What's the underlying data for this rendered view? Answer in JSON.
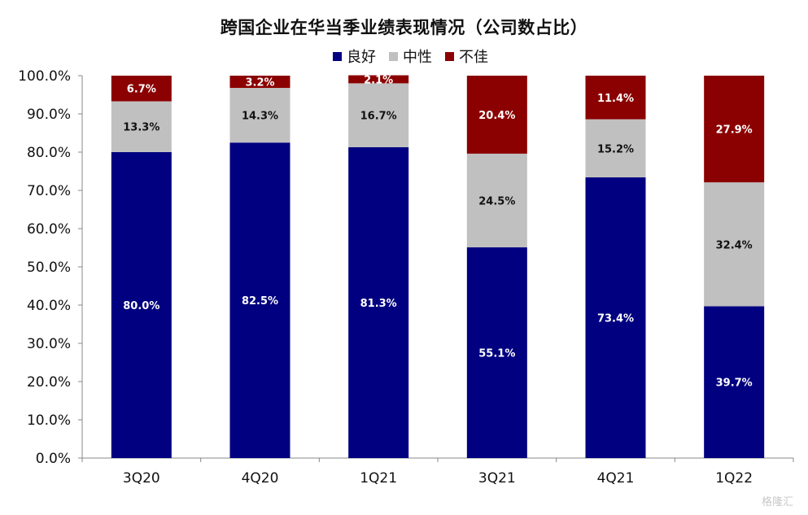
{
  "chart_data": {
    "type": "bar",
    "stacked": true,
    "title": "跨国企业在华当季业绩表现情况（公司数占比）",
    "categories": [
      "3Q20",
      "4Q20",
      "1Q21",
      "3Q21",
      "4Q21",
      "1Q22"
    ],
    "series": [
      {
        "name": "良好",
        "color": "#000080",
        "values": [
          80.0,
          82.5,
          81.3,
          55.1,
          73.4,
          39.7
        ],
        "labels": [
          "80.0%",
          "82.5%",
          "81.3%",
          "55.1%",
          "73.4%",
          "39.7%"
        ]
      },
      {
        "name": "中性",
        "color": "#c0c0c0",
        "values": [
          13.3,
          14.3,
          16.7,
          24.5,
          15.2,
          32.4
        ],
        "labels": [
          "13.3%",
          "14.3%",
          "16.7%",
          "24.5%",
          "15.2%",
          "32.4%"
        ]
      },
      {
        "name": "不佳",
        "color": "#8b0000",
        "values": [
          6.7,
          3.2,
          2.1,
          20.4,
          11.4,
          27.9
        ],
        "labels": [
          "6.7%",
          "3.2%",
          "2.1%",
          "20.4%",
          "11.4%",
          "27.9%"
        ]
      }
    ],
    "ylim": [
      0,
      100
    ],
    "yticks": [
      "0.0%",
      "10.0%",
      "20.0%",
      "30.0%",
      "40.0%",
      "50.0%",
      "60.0%",
      "70.0%",
      "80.0%",
      "90.0%",
      "100.0%"
    ],
    "legend_position": "top-center",
    "grid": false
  },
  "watermark": "格隆汇"
}
